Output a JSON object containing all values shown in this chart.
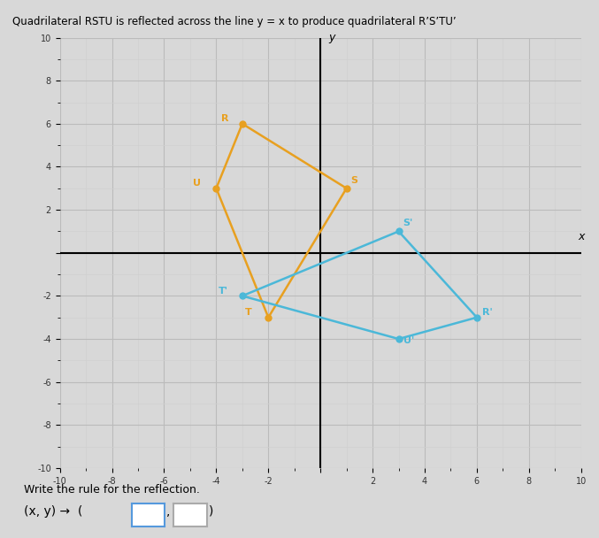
{
  "title": "Quadrilateral RSTU is reflected across the line y = x to produce quadrilateral R’S’TU’",
  "original_points": {
    "R": [
      -3,
      6
    ],
    "S": [
      1,
      3
    ],
    "T": [
      -2,
      -3
    ],
    "U": [
      -4,
      3
    ]
  },
  "reflected_points": {
    "R_prime": [
      6,
      -3
    ],
    "S_prime": [
      3,
      1
    ],
    "T_prime": [
      -3,
      -2
    ],
    "U_prime": [
      3,
      -4
    ]
  },
  "original_color": "#E8A020",
  "reflected_color": "#4BB8D8",
  "axis_range": [
    -10,
    10
  ],
  "grid_color": "#BBBBBB",
  "minor_grid_color": "#D0D0D0",
  "bg_color": "#D8D8D8",
  "xlabel": "x",
  "ylabel": "y"
}
